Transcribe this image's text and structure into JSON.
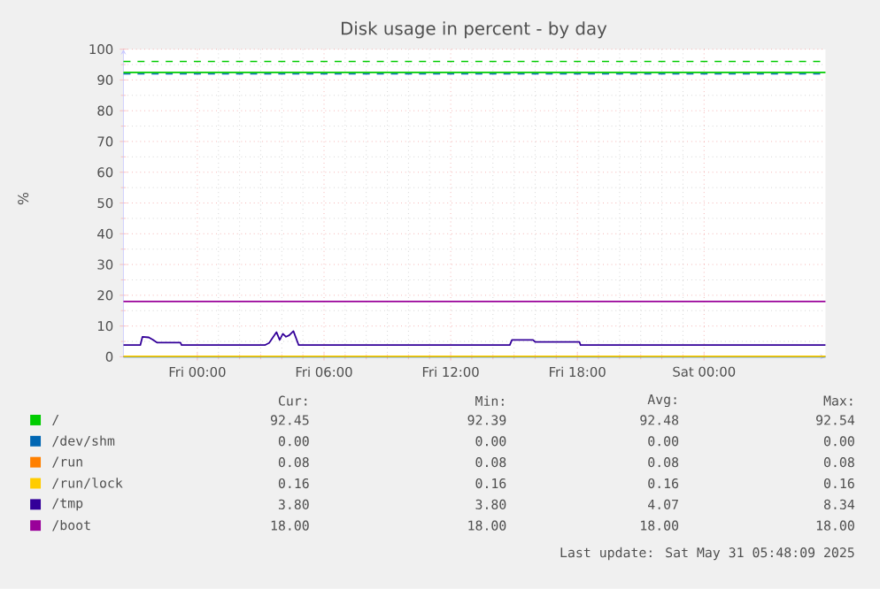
{
  "chart_data": {
    "type": "line",
    "title": "Disk usage in percent - by day",
    "ylabel": "%",
    "xlim": [
      "2025-05-29T20:30",
      "2025-05-31T05:45"
    ],
    "ylim": [
      0,
      100
    ],
    "xticks": [
      {
        "value": "2025-05-30T00:00",
        "label": "Fri 00:00"
      },
      {
        "value": "2025-05-30T06:00",
        "label": "Fri 06:00"
      },
      {
        "value": "2025-05-30T12:00",
        "label": "Fri 12:00"
      },
      {
        "value": "2025-05-30T18:00",
        "label": "Fri 18:00"
      },
      {
        "value": "2025-05-31T00:00",
        "label": "Sat 00:00"
      }
    ],
    "yticks": [
      0,
      10,
      20,
      30,
      40,
      50,
      60,
      70,
      80,
      90,
      100
    ],
    "grid": true,
    "legend": "bottom",
    "line_style": "solid",
    "series": [
      {
        "name": "/",
        "color": "#00cc00",
        "x": [
          "2025-05-29T20:30",
          "2025-05-31T05:45"
        ],
        "values": [
          92.45,
          92.45
        ]
      },
      {
        "name": "/dev/shm",
        "color": "#0066b3",
        "x": [
          "2025-05-29T20:30",
          "2025-05-31T05:45"
        ],
        "values": [
          0,
          0
        ]
      },
      {
        "name": "/run",
        "color": "#ff8000"
      },
      {
        "name": "/run/lock",
        "color": "#ffcc00",
        "x": [
          "2025-05-29T20:30",
          "2025-05-31T05:45"
        ],
        "values": [
          0.16,
          0.16
        ]
      },
      {
        "name": "/tmp",
        "color": "#330099",
        "x": [
          "2025-05-29T20:30",
          "2025-05-29T21:18",
          "2025-05-29T21:24",
          "2025-05-29T21:42",
          "2025-05-29T21:54",
          "2025-05-29T22:06",
          "2025-05-29T23:12",
          "2025-05-29T23:15",
          "2025-05-30T03:12",
          "2025-05-30T03:24",
          "2025-05-30T03:36",
          "2025-05-30T03:45",
          "2025-05-30T03:54",
          "2025-05-30T04:03",
          "2025-05-30T04:12",
          "2025-05-30T04:21",
          "2025-05-30T04:33",
          "2025-05-30T04:48",
          "2025-05-30T14:48",
          "2025-05-30T14:54",
          "2025-05-30T15:54",
          "2025-05-30T16:00",
          "2025-05-30T18:06",
          "2025-05-30T18:09",
          "2025-05-31T05:45"
        ],
        "values": [
          3.8,
          3.8,
          6.5,
          6.3,
          5.5,
          4.6,
          4.6,
          3.8,
          3.8,
          4.5,
          6.5,
          8.0,
          5.5,
          7.5,
          6.5,
          7.0,
          8.34,
          3.8,
          3.8,
          5.5,
          5.5,
          4.8,
          4.8,
          3.8,
          3.8
        ]
      },
      {
        "name": "/boot",
        "color": "#990099",
        "x": [
          "2025-05-29T20:30",
          "2025-05-31T05:45"
        ],
        "values": [
          18,
          18
        ]
      }
    ],
    "ref_lines": [
      {
        "axis": "y",
        "value": 96,
        "color": "#00cc00",
        "line_style": "dashed"
      },
      {
        "axis": "y",
        "value": 92,
        "color": "#0066b3",
        "line_style": "dashed"
      }
    ],
    "annotations": [
      "Cur:",
      "Min:",
      "Avg:",
      "Max:",
      "92.45",
      "92.39",
      "92.48",
      "92.54",
      "0.00",
      "0.00",
      "0.00",
      "0.00",
      "0.08",
      "0.08",
      "0.08",
      "0.08",
      "0.16",
      "0.16",
      "0.16",
      "0.16",
      "3.80",
      "3.80",
      "4.07",
      "8.34",
      "18.00",
      "18.00",
      "18.00",
      "18.00",
      "Last update: Sat May 31 05:48:09 2025"
    ]
  }
}
